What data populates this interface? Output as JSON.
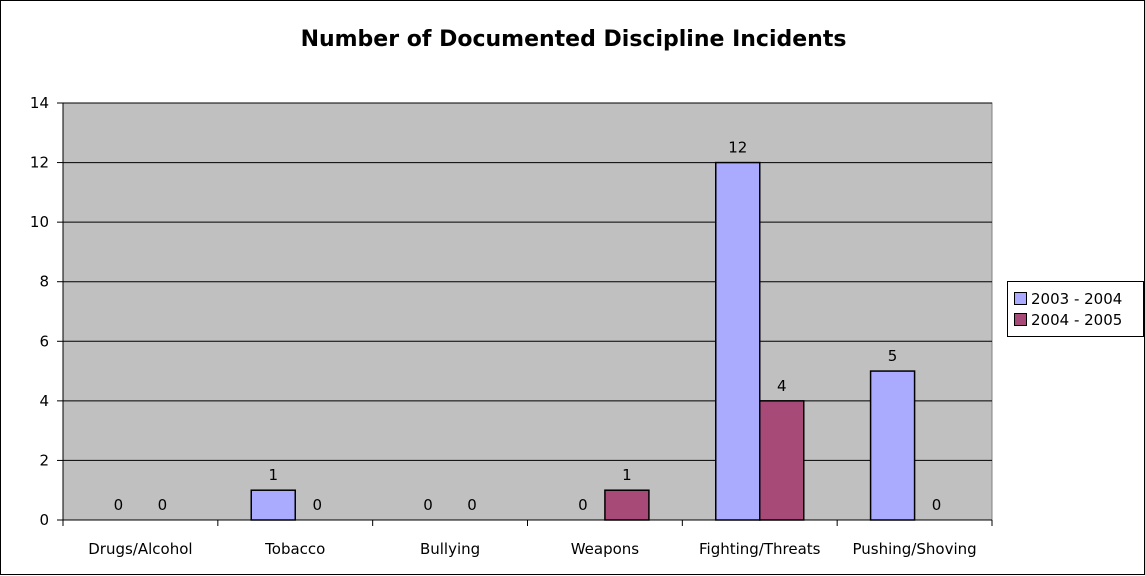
{
  "chart_data": {
    "type": "bar",
    "title": "Number of Documented Discipline Incidents",
    "categories": [
      "Drugs/Alcohol",
      "Tobacco",
      "Bullying",
      "Weapons",
      "Fighting/Threats",
      "Pushing/Shoving"
    ],
    "series": [
      {
        "name": "2003 - 2004",
        "color": "#aaaaff",
        "values": [
          0,
          1,
          0,
          0,
          12,
          5
        ]
      },
      {
        "name": "2004 - 2005",
        "color": "#a84a78",
        "values": [
          0,
          0,
          0,
          1,
          4,
          0
        ]
      }
    ],
    "ylim": [
      0,
      14
    ],
    "yticks": [
      0,
      2,
      4,
      6,
      8,
      10,
      12,
      14
    ],
    "grid": true,
    "plot_background": "#c0c0c0",
    "legend_position": "right",
    "data_labels": true,
    "xlabel": "",
    "ylabel": ""
  }
}
